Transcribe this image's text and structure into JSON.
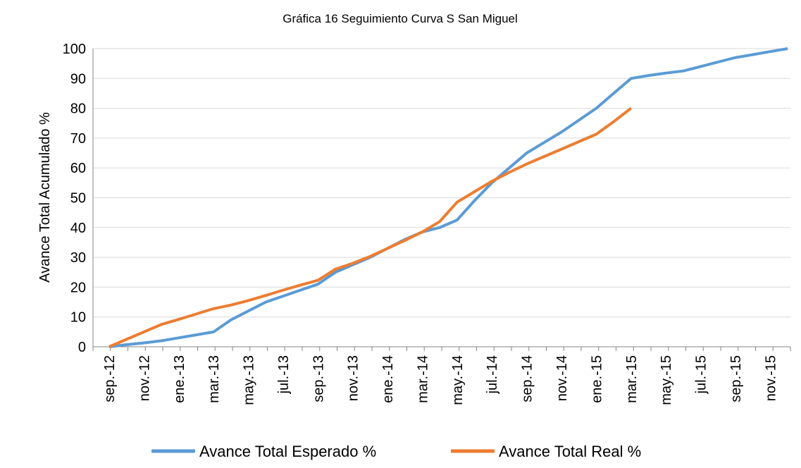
{
  "chart_data": {
    "type": "line",
    "title": "Gráfica 16 Seguimiento Curva S San Miguel",
    "y_label": "Avance Total Acumulado %",
    "categories": [
      "sep.-12",
      null,
      "nov.-12",
      null,
      "ene.-13",
      null,
      "mar.-13",
      null,
      "may.-13",
      null,
      "jul.-13",
      null,
      "sep.-13",
      null,
      "nov.-13",
      null,
      "ene.-14",
      null,
      "mar.-14",
      null,
      "may.-14",
      null,
      "jul.-14",
      null,
      "sep.-14",
      null,
      "nov.-14",
      null,
      "ene.-15",
      null,
      "mar.-15",
      null,
      "may.-15",
      null,
      "jul.-15",
      null,
      "sep.-15",
      null,
      "nov.-15",
      null
    ],
    "series": [
      {
        "name": "Avance Total Esperado %",
        "color": "#5b9bd5",
        "values": [
          0,
          0.7,
          1.3,
          2,
          3,
          4,
          5,
          9,
          12,
          15,
          17,
          19,
          21,
          25,
          27.5,
          30,
          33,
          36,
          38.5,
          40,
          42.5,
          49,
          55,
          60,
          65,
          68.5,
          72,
          76,
          80,
          85,
          90,
          91,
          91.8,
          92.5,
          94,
          95.5,
          97,
          98,
          99,
          100
        ]
      },
      {
        "name": "Avance Total Real %",
        "color": "#ed7d31",
        "values": [
          0,
          2.5,
          5,
          7.5,
          9.2,
          11,
          12.8,
          14,
          15.5,
          17.2,
          19,
          20.7,
          22.3,
          26,
          28,
          30.3,
          33,
          35.7,
          38.5,
          42,
          48.5,
          52,
          55.5,
          58.5,
          61.3,
          63.8,
          66.3,
          68.8,
          71.3,
          75.5,
          80,
          null,
          null,
          null,
          null,
          null,
          null,
          null,
          null,
          null
        ]
      }
    ],
    "ylim": [
      0,
      100
    ],
    "yticks": [
      0,
      10,
      20,
      30,
      40,
      50,
      60,
      70,
      80,
      90,
      100
    ],
    "grid": true,
    "legend": "bottom"
  }
}
